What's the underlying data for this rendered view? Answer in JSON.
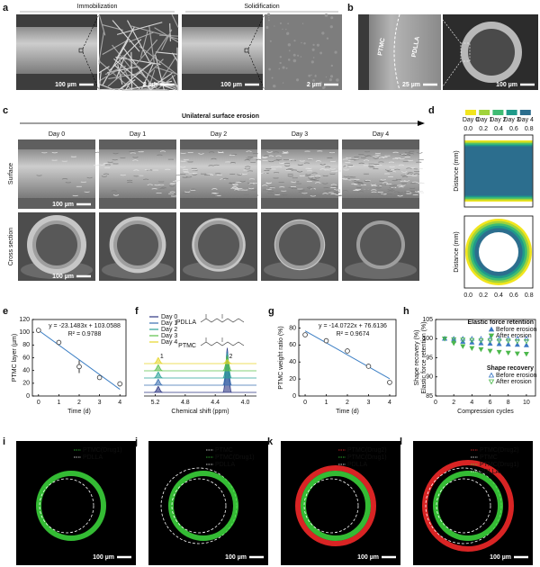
{
  "figure": {
    "a": {
      "label": "a",
      "titles": [
        "Immobilization",
        "Solidification"
      ],
      "scale_bars": [
        "100 µm",
        "2 µm",
        "100 µm",
        "2 µm"
      ]
    },
    "b": {
      "label": "b",
      "layers": [
        "PTMC",
        "PDLLA"
      ],
      "scale_bars": [
        "25 µm",
        "100 µm"
      ]
    },
    "c": {
      "label": "c",
      "arrow_text": "Unilateral surface erosion",
      "days": [
        "Day 0",
        "Day 1",
        "Day 2",
        "Day 3",
        "Day 4"
      ],
      "rows": [
        "Surface",
        "Cross section"
      ],
      "scale_bars": [
        "100 µm",
        "100 µm"
      ]
    },
    "fluorescence": [
      {
        "label": "i",
        "layers": [
          {
            "text": "PTMC(Drug1)",
            "color": "#3ddc3d"
          },
          {
            "text": "PDLLA",
            "color": "#ffffff"
          }
        ],
        "scale_bar": "100 µm"
      },
      {
        "label": "j",
        "layers": [
          {
            "text": "PTMC",
            "color": "#ffffff"
          },
          {
            "text": "PTMC(Drug1)",
            "color": "#3ddc3d"
          },
          {
            "text": "PDLLA",
            "color": "#ffffff"
          }
        ],
        "scale_bar": "100 µm"
      },
      {
        "label": "k",
        "layers": [
          {
            "text": "PTMC(Drug2)",
            "color": "#ff2a2a"
          },
          {
            "text": "PTMC(Drug1)",
            "color": "#3ddc3d"
          },
          {
            "text": "PDLLA",
            "color": "#ffffff"
          }
        ],
        "scale_bar": "100 µm"
      },
      {
        "label": "l",
        "layers": [
          {
            "text": "PTMC(Drug2)",
            "color": "#ff2a2a"
          },
          {
            "text": "PTMC",
            "color": "#ffffff"
          },
          {
            "text": "PTMC(Drug1)",
            "color": "#3ddc3d"
          },
          {
            "text": "PDLLA",
            "color": "#ffffff"
          }
        ],
        "scale_bar": "100 µm"
      }
    ]
  },
  "chart_data": [
    {
      "panel": "d",
      "type": "erosion-map",
      "series": [
        {
          "name": "Day 0",
          "color": "#f2e51d"
        },
        {
          "name": "Day 1",
          "color": "#a0d33b"
        },
        {
          "name": "Day 2",
          "color": "#3fbc73"
        },
        {
          "name": "Day 3",
          "color": "#1f9a8a"
        },
        {
          "name": "Day 4",
          "color": "#2c6e8e"
        }
      ],
      "xlim": [
        -0.05,
        0.85
      ],
      "xticks": [
        {
          "value": 0,
          "label": "0.0"
        },
        0.2,
        0.4,
        0.6,
        0.8
      ],
      "ylabel": "Distance (mm)"
    },
    {
      "panel": "e",
      "type": "scatter-fit",
      "x": [
        0,
        1,
        2,
        3,
        4
      ],
      "values": [
        103,
        84,
        46,
        29,
        19
      ],
      "errors": [
        2,
        4,
        10,
        2,
        4
      ],
      "fit": {
        "slope": -23.1483,
        "intercept": 103.0588
      },
      "annotations": [
        "y = -23.1483x + 103.0588",
        "R² = 0.9788"
      ],
      "xlim": [
        -0.3,
        4.3
      ],
      "xticks": [
        0,
        1,
        2,
        3,
        4
      ],
      "ylim": [
        0,
        120
      ],
      "yticks": [
        0,
        20,
        40,
        60,
        80,
        100,
        120
      ],
      "xlabel": "Time (d)",
      "ylabel": "PTMC layer (µm)",
      "color": "#333333",
      "fit_color": "#3b7ec4"
    },
    {
      "panel": "f",
      "type": "spectrum",
      "series": [
        {
          "name": "Day 0",
          "color": "#2d3582",
          "values": [
            0.12,
            0.9
          ]
        },
        {
          "name": "Day 1",
          "color": "#3a6fb0",
          "values": [
            0.12,
            0.7
          ]
        },
        {
          "name": "Day 2",
          "color": "#2aa198",
          "values": [
            0.12,
            0.5
          ]
        },
        {
          "name": "Day 3",
          "color": "#5cc04b",
          "values": [
            0.12,
            0.3
          ]
        },
        {
          "name": "Day 4",
          "color": "#e6d52a",
          "values": [
            0.12,
            0.08
          ]
        }
      ],
      "peaks": [
        5.16,
        4.24
      ],
      "peak_labels": [
        "1",
        "2"
      ],
      "structures": [
        "PDLLA",
        "PTMC"
      ],
      "xlim": [
        5.35,
        3.85
      ],
      "xticks": [
        5.2,
        4.8,
        4.4,
        {
          "value": 4,
          "label": "4.0"
        }
      ],
      "xlabel": "Chemical shift (ppm)"
    },
    {
      "panel": "g",
      "type": "scatter-fit",
      "x": [
        0,
        1,
        2,
        3,
        4
      ],
      "values": [
        72,
        65,
        53,
        35,
        16
      ],
      "fit": {
        "slope": -14.0722,
        "intercept": 76.6136
      },
      "annotations": [
        "y = -14.0722x + 76.6136",
        "R² = 0.9674"
      ],
      "xlim": [
        -0.3,
        4.3
      ],
      "xticks": [
        0,
        1,
        2,
        3,
        4
      ],
      "ylim": [
        0,
        90
      ],
      "yticks": [
        0,
        20,
        40,
        60,
        80
      ],
      "xlabel": "Time (d)",
      "ylabel": "PTMC weight ratio (%)",
      "color": "#333333",
      "fit_color": "#3b7ec4"
    },
    {
      "panel": "h",
      "type": "cycles",
      "x": [
        1,
        2,
        3,
        4,
        5,
        6,
        7,
        8,
        9,
        10
      ],
      "groups": [
        {
          "title": "Elastic force retention",
          "series": [
            {
              "name": "Before erosion",
              "color": "#3b78c4",
              "marker": "up",
              "filled": true,
              "values": [
                100,
                99.5,
                99.2,
                99,
                98.8,
                98.7,
                98.6,
                98.5,
                98.4,
                98.3
              ]
            },
            {
              "name": "After erosion",
              "color": "#4cb84c",
              "marker": "down",
              "filled": true,
              "values": [
                100,
                98.8,
                98,
                97.5,
                97.2,
                96.8,
                96.5,
                96.3,
                96.1,
                96
              ]
            }
          ]
        },
        {
          "title": "Shape recovery",
          "series": [
            {
              "name": "Before erosion",
              "color": "#3b78c4",
              "marker": "up",
              "filled": false,
              "values": [
                100,
                100,
                100,
                100,
                100,
                100,
                100,
                100,
                100,
                100
              ]
            },
            {
              "name": "After erosion",
              "color": "#4cb84c",
              "marker": "down",
              "filled": false,
              "values": [
                100,
                99.8,
                99.7,
                99.6,
                99.5,
                99.5,
                99.4,
                99.4,
                99.3,
                99.3
              ]
            }
          ]
        }
      ],
      "xlim": [
        0,
        11
      ],
      "xticks": [
        0,
        2,
        4,
        6,
        8,
        10
      ],
      "ylim": [
        85,
        105
      ],
      "yticks": [
        85,
        90,
        95,
        100,
        105
      ],
      "xlabel": "Compression cycles",
      "ylabel": [
        "Shape recovery (%)",
        "Elastic force retention (%)"
      ]
    }
  ]
}
